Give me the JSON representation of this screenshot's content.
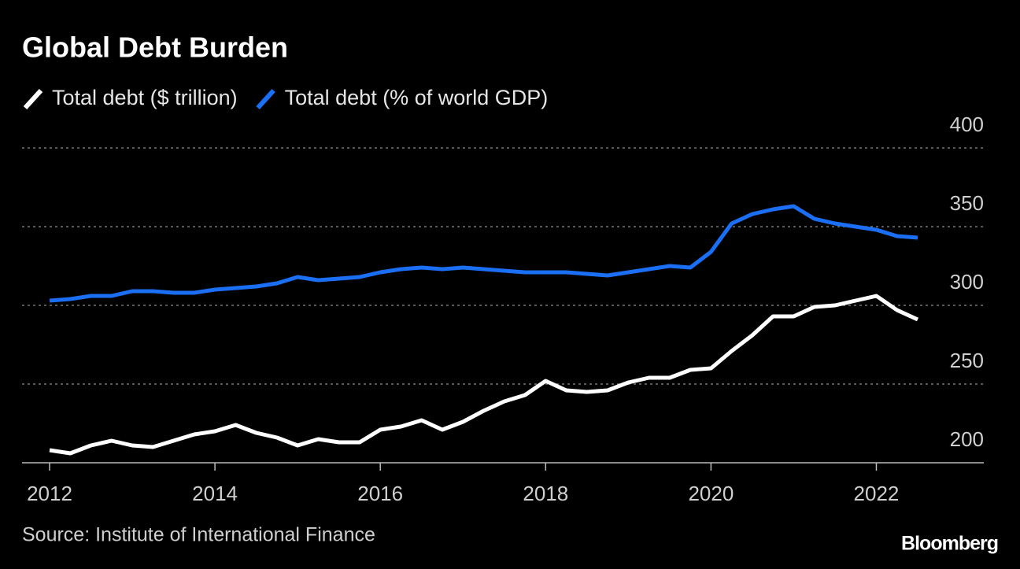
{
  "chart_data": {
    "type": "line",
    "title": "Global Debt Burden",
    "source": "Source: Institute of International Finance",
    "brand": "Bloomberg",
    "categories": [
      "2012",
      null,
      null,
      null,
      null,
      null,
      null,
      null,
      "2014",
      null,
      null,
      null,
      null,
      null,
      null,
      null,
      "2016",
      null,
      null,
      null,
      null,
      null,
      null,
      null,
      "2018",
      null,
      null,
      null,
      null,
      null,
      null,
      null,
      "2020",
      null,
      null,
      null,
      null,
      null,
      null,
      null,
      "2022",
      null,
      null
    ],
    "series": [
      {
        "name": "Total debt ($ trillion)",
        "color": "#ffffff",
        "values": [
          208,
          206,
          211,
          214,
          211,
          210,
          214,
          218,
          220,
          224,
          219,
          216,
          211,
          215,
          213,
          213,
          221,
          223,
          227,
          221,
          226,
          233,
          239,
          243,
          252,
          246,
          245,
          246,
          251,
          254,
          254,
          259,
          260,
          271,
          281,
          293,
          293,
          299,
          300,
          303,
          306,
          297,
          291
        ]
      },
      {
        "name": "Total debt (% of world GDP)",
        "color": "#1a6ff5",
        "values": [
          303,
          304,
          306,
          306,
          309,
          309,
          308,
          308,
          310,
          311,
          312,
          314,
          318,
          316,
          317,
          318,
          321,
          323,
          324,
          323,
          324,
          323,
          322,
          321,
          321,
          321,
          320,
          319,
          321,
          323,
          325,
          324,
          334,
          352,
          358,
          361,
          363,
          355,
          352,
          350,
          348,
          344,
          343
        ]
      }
    ],
    "ylim": [
      200,
      400
    ],
    "yticks": [
      200,
      250,
      300,
      350,
      400
    ],
    "grid": true
  }
}
